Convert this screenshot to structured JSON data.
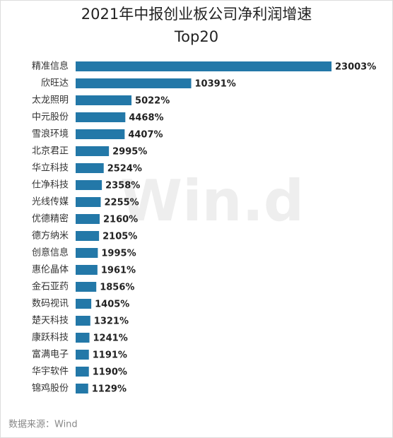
{
  "chart_data": {
    "type": "bar",
    "orientation": "horizontal",
    "title": [
      "2021年中报创业板公司净利润增速",
      "Top20"
    ],
    "categories": [
      "精准信息",
      "欣旺达",
      "太龙照明",
      "中元股份",
      "雪浪环境",
      "北京君正",
      "华立科技",
      "仕净科技",
      "光线传媒",
      "优德精密",
      "德方纳米",
      "创意信息",
      "惠伦晶体",
      "金石亚药",
      "数码视讯",
      "楚天科技",
      "康跃科技",
      "富满电子",
      "华宇软件",
      "锦鸡股份"
    ],
    "values": [
      23003,
      10391,
      5022,
      4468,
      4407,
      2995,
      2524,
      2358,
      2255,
      2160,
      2105,
      1995,
      1961,
      1856,
      1405,
      1321,
      1241,
      1191,
      1190,
      1129
    ],
    "value_labels": [
      "23003%",
      "10391%",
      "5022%",
      "4468%",
      "4407%",
      "2995%",
      "2524%",
      "2358%",
      "2255%",
      "2160%",
      "2105%",
      "1995%",
      "1961%",
      "1856%",
      "1405%",
      "1321%",
      "1241%",
      "1191%",
      "1190%",
      "1129%"
    ],
    "color": "#2378a8",
    "watermark": "Win.d",
    "source": "数据来源：Wind"
  }
}
